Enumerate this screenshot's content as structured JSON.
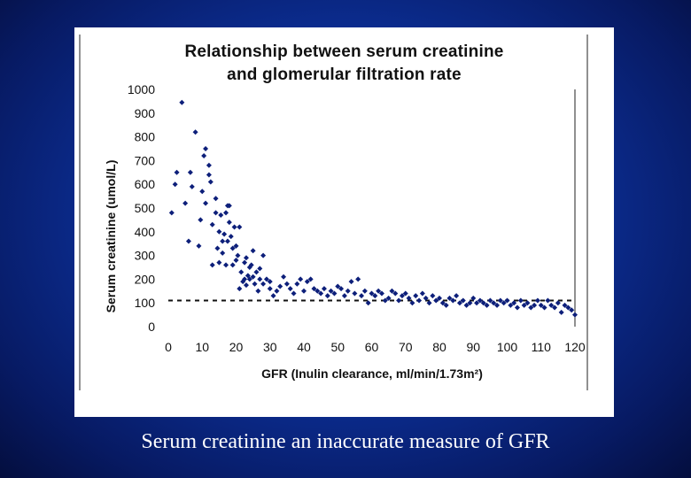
{
  "caption": "Serum creatinine an inaccurate measure of GFR",
  "colors": {
    "marker": "#0d1f7a",
    "axis": "#222222",
    "reference_line": "#111111"
  },
  "chart_data": {
    "type": "scatter",
    "title_line1": "Relationship between serum creatinine",
    "title_line2": "and glomerular filtration rate",
    "xlabel": "GFR (Inulin clearance, ml/min/1.73m²)",
    "ylabel": "Serum creatinine (umol/L)",
    "xlim": [
      0,
      120
    ],
    "ylim": [
      0,
      1000
    ],
    "xticks": [
      0,
      10,
      20,
      30,
      40,
      50,
      60,
      70,
      80,
      90,
      100,
      110,
      120
    ],
    "yticks": [
      0,
      100,
      200,
      300,
      400,
      500,
      600,
      700,
      800,
      900,
      1000
    ],
    "grid": false,
    "reference_line": {
      "y": 110,
      "style": "dashed"
    },
    "points": [
      [
        1,
        480
      ],
      [
        2,
        600
      ],
      [
        2.5,
        650
      ],
      [
        4,
        945
      ],
      [
        5,
        520
      ],
      [
        6,
        360
      ],
      [
        6.5,
        650
      ],
      [
        7,
        590
      ],
      [
        8,
        820
      ],
      [
        9,
        340
      ],
      [
        9.5,
        450
      ],
      [
        10,
        570
      ],
      [
        10.5,
        720
      ],
      [
        11,
        750
      ],
      [
        11,
        520
      ],
      [
        12,
        680
      ],
      [
        12,
        640
      ],
      [
        12.5,
        610
      ],
      [
        13,
        260
      ],
      [
        13,
        430
      ],
      [
        14,
        480
      ],
      [
        14,
        540
      ],
      [
        14.5,
        330
      ],
      [
        15,
        270
      ],
      [
        15,
        400
      ],
      [
        15.5,
        470
      ],
      [
        16,
        310
      ],
      [
        16,
        360
      ],
      [
        16.5,
        390
      ],
      [
        17,
        480
      ],
      [
        17,
        260
      ],
      [
        17.5,
        510
      ],
      [
        17.5,
        360
      ],
      [
        18,
        440
      ],
      [
        18,
        510
      ],
      [
        18.5,
        380
      ],
      [
        19,
        330
      ],
      [
        19,
        260
      ],
      [
        19.5,
        420
      ],
      [
        20,
        280
      ],
      [
        20,
        340
      ],
      [
        20.5,
        300
      ],
      [
        21,
        160
      ],
      [
        21,
        420
      ],
      [
        21.5,
        230
      ],
      [
        22,
        190
      ],
      [
        22.5,
        270
      ],
      [
        22.5,
        200
      ],
      [
        23,
        290
      ],
      [
        23,
        175
      ],
      [
        23.5,
        215
      ],
      [
        24,
        250
      ],
      [
        24,
        200
      ],
      [
        24.5,
        260
      ],
      [
        25,
        320
      ],
      [
        25,
        210
      ],
      [
        25.5,
        180
      ],
      [
        26,
        230
      ],
      [
        26.5,
        150
      ],
      [
        27,
        200
      ],
      [
        27,
        245
      ],
      [
        28,
        300
      ],
      [
        28,
        180
      ],
      [
        29,
        200
      ],
      [
        30,
        190
      ],
      [
        30,
        160
      ],
      [
        31,
        130
      ],
      [
        32,
        150
      ],
      [
        33,
        170
      ],
      [
        34,
        210
      ],
      [
        35,
        180
      ],
      [
        36,
        160
      ],
      [
        37,
        140
      ],
      [
        38,
        180
      ],
      [
        39,
        200
      ],
      [
        40,
        150
      ],
      [
        41,
        190
      ],
      [
        42,
        200
      ],
      [
        43,
        160
      ],
      [
        44,
        150
      ],
      [
        45,
        140
      ],
      [
        46,
        160
      ],
      [
        47,
        130
      ],
      [
        48,
        150
      ],
      [
        49,
        140
      ],
      [
        50,
        170
      ],
      [
        51,
        160
      ],
      [
        52,
        130
      ],
      [
        53,
        150
      ],
      [
        54,
        190
      ],
      [
        55,
        140
      ],
      [
        56,
        200
      ],
      [
        57,
        130
      ],
      [
        58,
        150
      ],
      [
        59,
        100
      ],
      [
        60,
        140
      ],
      [
        61,
        130
      ],
      [
        62,
        150
      ],
      [
        63,
        140
      ],
      [
        64,
        110
      ],
      [
        65,
        120
      ],
      [
        66,
        150
      ],
      [
        67,
        140
      ],
      [
        68,
        110
      ],
      [
        69,
        130
      ],
      [
        70,
        140
      ],
      [
        71,
        120
      ],
      [
        72,
        100
      ],
      [
        73,
        130
      ],
      [
        74,
        110
      ],
      [
        75,
        140
      ],
      [
        76,
        120
      ],
      [
        77,
        100
      ],
      [
        78,
        130
      ],
      [
        79,
        110
      ],
      [
        80,
        120
      ],
      [
        81,
        100
      ],
      [
        82,
        90
      ],
      [
        83,
        120
      ],
      [
        84,
        110
      ],
      [
        85,
        130
      ],
      [
        86,
        100
      ],
      [
        87,
        110
      ],
      [
        88,
        90
      ],
      [
        89,
        100
      ],
      [
        90,
        120
      ],
      [
        91,
        100
      ],
      [
        92,
        110
      ],
      [
        93,
        100
      ],
      [
        94,
        90
      ],
      [
        95,
        110
      ],
      [
        96,
        100
      ],
      [
        97,
        90
      ],
      [
        98,
        110
      ],
      [
        99,
        100
      ],
      [
        100,
        110
      ],
      [
        101,
        90
      ],
      [
        102,
        100
      ],
      [
        103,
        80
      ],
      [
        104,
        110
      ],
      [
        105,
        90
      ],
      [
        106,
        100
      ],
      [
        107,
        80
      ],
      [
        108,
        90
      ],
      [
        109,
        110
      ],
      [
        110,
        90
      ],
      [
        111,
        80
      ],
      [
        112,
        110
      ],
      [
        113,
        90
      ],
      [
        114,
        80
      ],
      [
        115,
        100
      ],
      [
        116,
        60
      ],
      [
        117,
        90
      ],
      [
        118,
        80
      ],
      [
        119,
        70
      ],
      [
        120,
        50
      ]
    ]
  }
}
